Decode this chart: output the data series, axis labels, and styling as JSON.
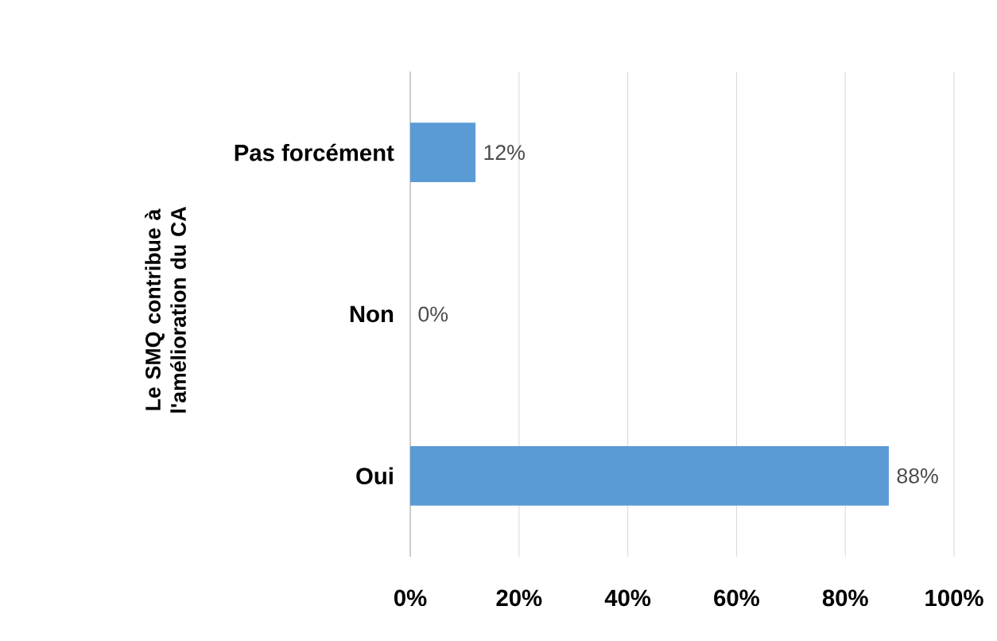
{
  "chart_data": {
    "type": "bar",
    "orientation": "horizontal",
    "ylabel": "Le SMQ contribue à l'amélioration du CA",
    "categories": [
      "Pas forcément",
      "Non",
      "Oui"
    ],
    "values": [
      12,
      0,
      88
    ],
    "value_labels": [
      "12%",
      "0%",
      "88%"
    ],
    "color": "#5b9bd5",
    "xlim": [
      0,
      100
    ],
    "xticks": [
      {
        "value": 0,
        "label": "0%"
      },
      {
        "value": 20,
        "label": "20%"
      },
      {
        "value": 40,
        "label": "40%"
      },
      {
        "value": 60,
        "label": "60%"
      },
      {
        "value": 80,
        "label": "80%"
      },
      {
        "value": 100,
        "label": "100%"
      }
    ],
    "grid": "x"
  }
}
